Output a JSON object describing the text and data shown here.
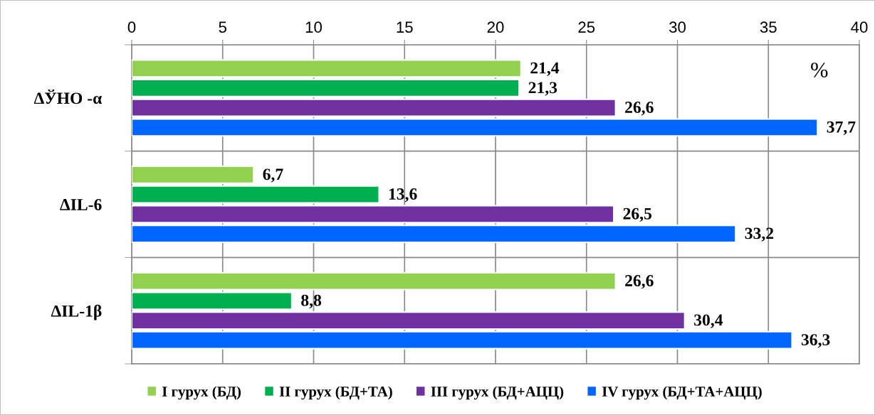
{
  "chart_data": {
    "type": "bar",
    "orientation": "horizontal",
    "categories": [
      "ΔЎНО -α",
      "ΔIL-6",
      "ΔIL-1β"
    ],
    "series": [
      {
        "name": "I гурух (БД)",
        "color": "#92d050",
        "values": [
          21.4,
          6.7,
          26.6
        ],
        "value_labels": [
          "21,4",
          "6,7",
          "26,6"
        ]
      },
      {
        "name": "II гурух (БД+ТА)",
        "color": "#00b050",
        "values": [
          21.3,
          13.6,
          8.8
        ],
        "value_labels": [
          "21,3",
          "13,6",
          "8,8"
        ]
      },
      {
        "name": "III гурух (БД+АЦЦ)",
        "color": "#7030a0",
        "values": [
          26.6,
          26.5,
          30.4
        ],
        "value_labels": [
          "26,6",
          "26,5",
          "30,4"
        ]
      },
      {
        "name": "IV гурух (БД+ТА+АЦЦ)",
        "color": "#0066ff",
        "values": [
          37.7,
          33.2,
          36.3
        ],
        "value_labels": [
          "37,7",
          "33,2",
          "36,3"
        ]
      }
    ],
    "xlim": [
      0,
      40
    ],
    "xticks": [
      0,
      5,
      10,
      15,
      20,
      25,
      30,
      35,
      40
    ],
    "grid": true,
    "legend": "bottom",
    "annotations": [
      "%"
    ]
  }
}
